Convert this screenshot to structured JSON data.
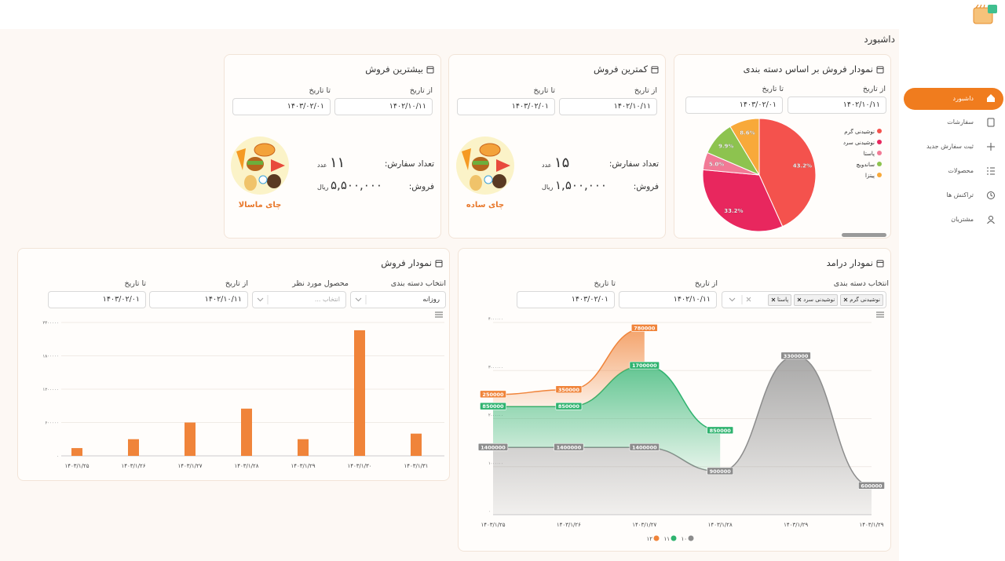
{
  "sidebar": {
    "menu": [
      "داشبورد",
      "سفارشات",
      "ثبت سفارش جدید",
      "محصولات",
      "تراکنش ها",
      "مشتریان"
    ]
  },
  "page_title": "داشبورد",
  "cards": {
    "category_sales": {
      "from_label": "از تاریخ",
      "to_label": "تا تاریخ",
      "from_date": "۱۴۰۲/۱۰/۱۱",
      "to_date": "۱۴۰۳/۰۲/۰۱"
    },
    "lowest_sales": {
      "title": "کمترین فروش",
      "from_label": "از تاریخ",
      "to_label": "تا تاریخ",
      "from_date": "۱۴۰۲/۱۰/۱۱",
      "to_date": "۱۴۰۳/۰۲/۰۱",
      "orders_label": "تعداد سفارش:",
      "orders": "۱۵",
      "orders_unit": "عدد",
      "sales_label": "فروش:",
      "sales": "۱,۵۰۰,۰۰۰",
      "sales_unit": "ریال",
      "product": "چای ساده"
    },
    "highest_sales": {
      "title": "بیشترین فروش",
      "from_label": "از تاریخ",
      "to_label": "تا تاریخ",
      "from_date": "۱۴۰۲/۱۰/۱۱",
      "to_date": "۱۴۰۳/۰۲/۰۱",
      "orders_label": "تعداد سفارش:",
      "orders": "۱۱",
      "orders_unit": "عدد",
      "sales_label": "فروش:",
      "sales": "۵,۵۰۰,۰۰۰",
      "sales_unit": "ریال",
      "product": "چای ماسالا"
    },
    "sales_chart": {
      "category_label": "انتخاب دسته بندی",
      "category_value": "روزانه",
      "product_label": "محصول مورد نظر",
      "product_placeholder": "انتخاب ...",
      "from_label": "از تاریخ",
      "to_label": "تا تاریخ",
      "from_date": "۱۴۰۲/۱۰/۱۱",
      "to_date": "۱۴۰۳/۰۲/۰۱"
    },
    "revenue_chart": {
      "category_label": "انتخاب دسته بندی",
      "tags": [
        "نوشیدنی گرم",
        "نوشیدنی سرد",
        "پاستا"
      ],
      "from_label": "از تاریخ",
      "to_label": "تا تاریخ",
      "from_date": "۱۴۰۲/۱۰/۱۱",
      "to_date": "۱۴۰۳/۰۲/۰۱"
    }
  },
  "chart_data": [
    {
      "type": "pie",
      "title": "نمودار فروش بر اساس دسته بندی",
      "categories": [
        "نوشیدنی گرم",
        "نوشیدنی سرد",
        "پاستا",
        "ساندویچ",
        "پیتزا"
      ],
      "values": [
        43.2,
        33.2,
        5.0,
        9.9,
        8.6
      ],
      "value_labels": [
        "43.2%",
        "33.2%",
        "5.0%",
        "9.9%",
        "8.6%"
      ],
      "colors": [
        "#f4524d",
        "#e8275e",
        "#f27a96",
        "#8dc34f",
        "#f8a93a"
      ]
    },
    {
      "type": "bar",
      "title": "نمودار فروش",
      "categories": [
        "۱۴۰۳/۱/۲۵",
        "۱۴۰۳/۱/۲۶",
        "۱۴۰۳/۱/۲۷",
        "۱۴۰۳/۱/۲۸",
        "۱۴۰۳/۱/۲۹",
        "۱۴۰۳/۱/۳۰",
        "۱۴۰۳/۱/۳۱"
      ],
      "values": [
        140000,
        300000,
        600000,
        850000,
        300000,
        2260000,
        400000
      ],
      "color": "#f0843a",
      "ylim": [
        0,
        2400000
      ],
      "yticks": [
        {
          "value": 0,
          "label": "۰"
        },
        {
          "value": 600000,
          "label": "۶۰۰۰۰۰"
        },
        {
          "value": 1200000,
          "label": "۱۲۰۰۰۰۰"
        },
        {
          "value": 1800000,
          "label": "۱۸۰۰۰۰۰"
        },
        {
          "value": 2400000,
          "label": "۲۴۰۰۰۰۰"
        }
      ],
      "grid": true
    },
    {
      "type": "area",
      "title": "نمودار درامد",
      "stacked": true,
      "categories": [
        "۱۴۰۳/۱/۲۵",
        "۱۴۰۳/۱/۲۶",
        "۱۴۰۳/۱/۲۷",
        "۱۴۰۳/۱/۲۸",
        "۱۴۰۳/۱/۲۹",
        "۱۴۰۳/۱/۲۹"
      ],
      "series": [
        {
          "name": "۱۰",
          "color": "#8c8c8c",
          "values": [
            1400000,
            1400000,
            1400000,
            900000,
            3300000,
            600000
          ]
        },
        {
          "name": "۱۱",
          "color": "#2fb36f",
          "values": [
            850000,
            850000,
            1700000,
            850000,
            null,
            null
          ]
        },
        {
          "name": "۱۲",
          "color": "#f0843a",
          "values": [
            250000,
            350000,
            780000,
            null,
            null,
            null
          ]
        }
      ],
      "ylim": [
        0,
        4000000
      ],
      "yticks": [
        {
          "value": 0,
          "label": "۰"
        },
        {
          "value": 1000000,
          "label": "۱۰۰۰۰۰۰"
        },
        {
          "value": 2000000,
          "label": "۲۰۰۰۰۰۰"
        },
        {
          "value": 3000000,
          "label": "۳۰۰۰۰۰۰"
        },
        {
          "value": 4000000,
          "label": "۴۰۰۰۰۰۰"
        }
      ],
      "grid": true
    }
  ]
}
